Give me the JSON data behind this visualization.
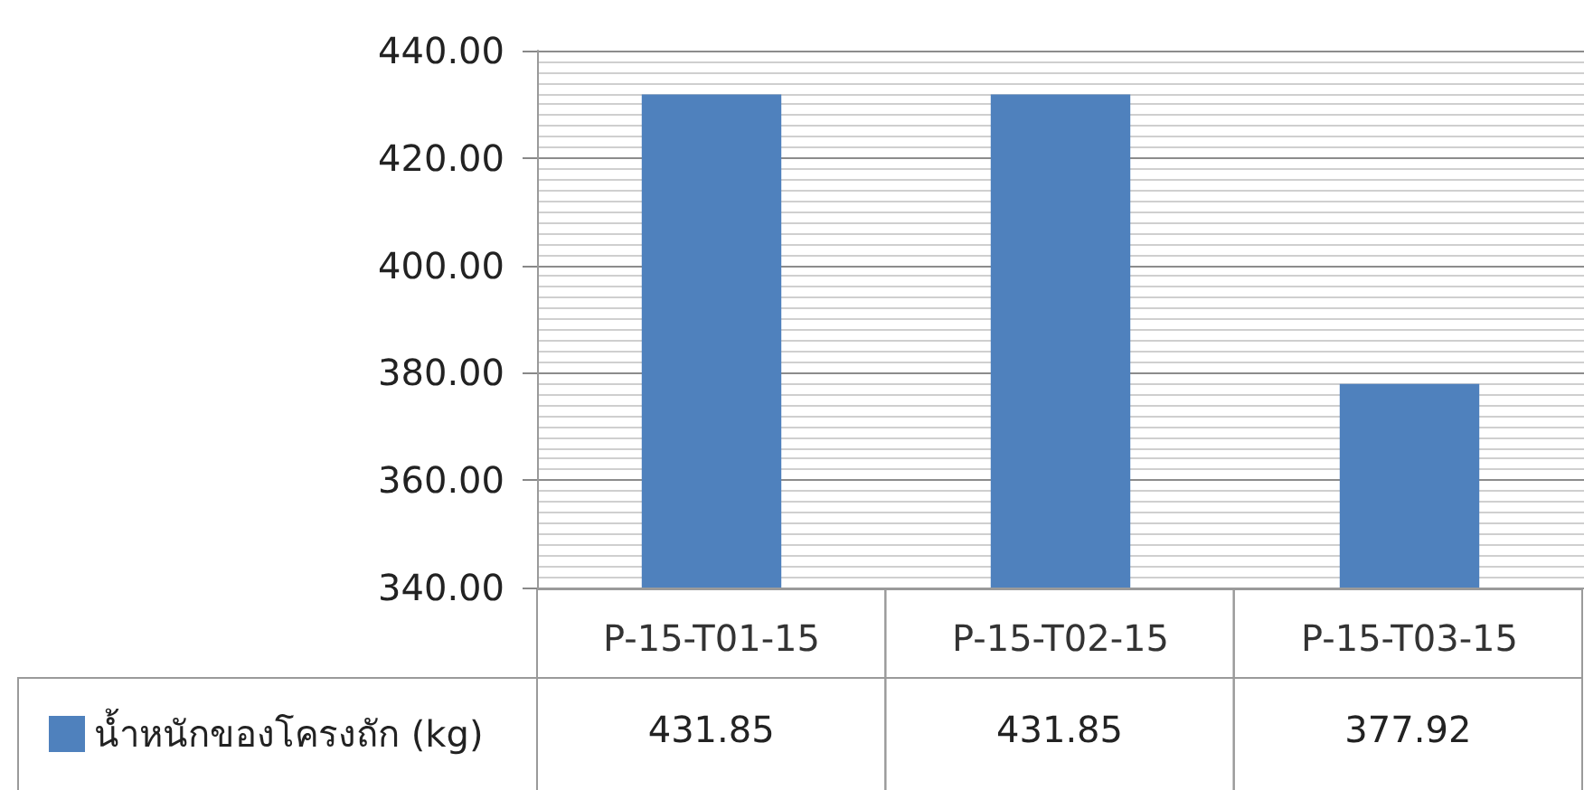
{
  "chart_data": {
    "type": "bar",
    "categories": [
      "P-15-T01-15",
      "P-15-T02-15",
      "P-15-T03-15"
    ],
    "series": [
      {
        "name": "น้ำหนักของโครงถัก (kg)",
        "color": "#4f81bd",
        "values": [
          431.85,
          431.85,
          377.92
        ]
      }
    ],
    "ylim": [
      340,
      440
    ],
    "yticks": [
      {
        "value": 340,
        "label": "340.00"
      },
      {
        "value": 360,
        "label": "360.00"
      },
      {
        "value": 380,
        "label": "380.00"
      },
      {
        "value": 400,
        "label": "400.00"
      },
      {
        "value": 420,
        "label": "420.00"
      },
      {
        "value": 440,
        "label": "440.00"
      }
    ],
    "grid": true,
    "legend": "bottom left",
    "data_labels": true
  }
}
